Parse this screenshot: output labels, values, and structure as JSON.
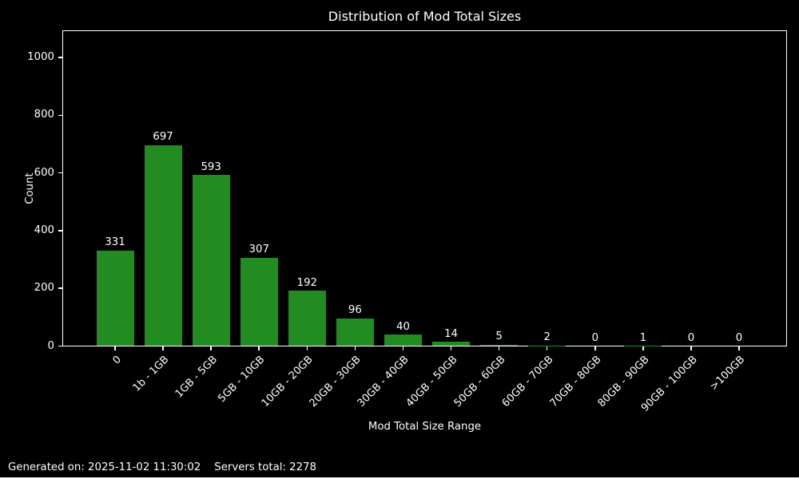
{
  "title": "Distribution of Mod Total Sizes",
  "footer": {
    "generated": "Generated on: 2025-11-02 11:30:02",
    "servers_total": "Servers total: 2278"
  },
  "chart_data": {
    "type": "bar",
    "title": "Distribution of Mod Total Sizes",
    "xlabel": "Mod Total Size Range",
    "ylabel": "Count",
    "categories": [
      "0",
      "1b - 1GB",
      "1GB - 5GB",
      "5GB - 10GB",
      "10GB - 20GB",
      "20GB - 30GB",
      "30GB - 40GB",
      "40GB - 50GB",
      "50GB - 60GB",
      "60GB - 70GB",
      "70GB - 80GB",
      "80GB - 90GB",
      "90GB - 100GB",
      ">100GB"
    ],
    "values": [
      331,
      697,
      593,
      307,
      192,
      96,
      40,
      14,
      5,
      2,
      0,
      1,
      0,
      0
    ],
    "yticks": [
      0,
      200,
      400,
      600,
      800,
      1000
    ],
    "ylim": [
      0,
      1094
    ],
    "xtick_rotation": 45,
    "grid": false,
    "legend": null,
    "bar_labels": true,
    "colors": {
      "bar": "#228B22",
      "background": "#000000",
      "text": "#ffffff",
      "axis": "#ffffff"
    }
  }
}
